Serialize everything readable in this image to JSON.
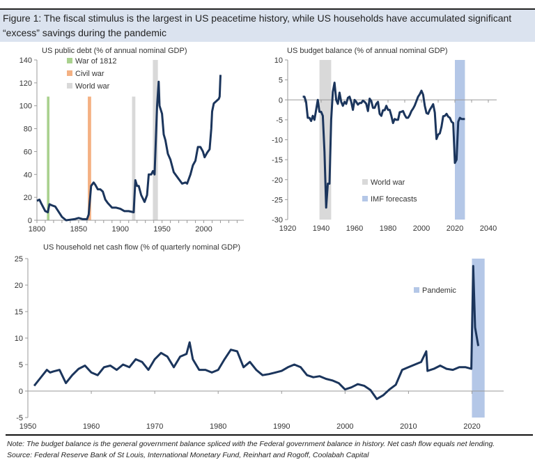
{
  "figure_title": "Figure 1: The fiscal stimulus is the largest in US peacetime history, while US households have accumulated significant “excess” savings during the pandemic",
  "note": "Note: The budget balance is the general government balance spliced with the Federal government balance in history. Net cash flow equals net lending.",
  "source": "Source: Federal Reserve Bank of St Louis, International Monetary Fund, Reinhart and Rogoff, Coolabah Capital",
  "colors": {
    "line": "#1b355c",
    "war_1812": "#a9d18e",
    "civil_war": "#f4b183",
    "world_war": "#d9d9d9",
    "imf": "#b4c7e7",
    "pandemic": "#b4c7e7",
    "header_bg": "#dbe3ef"
  },
  "chart_data": [
    {
      "type": "line",
      "title": "US public debt (% of annual nominal GDP)",
      "xlim": [
        1800,
        2048
      ],
      "ylim": [
        0,
        140
      ],
      "xticks": [
        1800,
        1850,
        1900,
        1950,
        2000
      ],
      "yticks": [
        0,
        20,
        40,
        60,
        80,
        100,
        120,
        140
      ],
      "legend": [
        "War of 1812",
        "Civil war",
        "World war"
      ],
      "legend_position": "top-left",
      "bands": [
        {
          "name": "War of 1812",
          "from": 1812,
          "to": 1815,
          "top": 108,
          "color": "#a9d18e"
        },
        {
          "name": "Civil war",
          "from": 1861,
          "to": 1865,
          "top": 108,
          "color": "#f4b183"
        },
        {
          "name": "World war",
          "from": 1914,
          "to": 1918,
          "top": 108,
          "color": "#d9d9d9"
        },
        {
          "name": "World war",
          "from": 1939,
          "to": 1945,
          "top": 140,
          "color": "#d9d9d9"
        }
      ],
      "x": [
        1800,
        1803,
        1805,
        1810,
        1813,
        1815,
        1818,
        1822,
        1830,
        1835,
        1840,
        1845,
        1850,
        1855,
        1860,
        1862,
        1865,
        1868,
        1870,
        1873,
        1876,
        1879,
        1882,
        1885,
        1890,
        1895,
        1900,
        1905,
        1910,
        1916,
        1918,
        1920,
        1922,
        1925,
        1929,
        1932,
        1934,
        1937,
        1939,
        1941,
        1944,
        1946,
        1947,
        1950,
        1952,
        1954,
        1957,
        1960,
        1964,
        1970,
        1974,
        1978,
        1980,
        1984,
        1987,
        1990,
        1993,
        1996,
        1999,
        2001,
        2004,
        2007,
        2009,
        2010,
        2012,
        2015,
        2018,
        2019,
        2020
      ],
      "values": [
        17,
        18,
        15,
        8,
        7,
        14,
        13,
        12,
        3,
        0,
        0.5,
        1,
        2,
        1,
        1,
        5,
        30,
        33,
        31,
        27,
        27,
        25,
        18,
        15,
        11,
        11,
        10,
        8,
        8,
        7,
        35,
        30,
        30,
        22,
        16,
        22,
        40,
        40,
        43,
        40,
        100,
        121,
        100,
        93,
        75,
        70,
        58,
        53,
        42,
        36,
        32,
        33,
        32,
        40,
        48,
        52,
        64,
        64,
        60,
        55,
        59,
        62,
        80,
        95,
        102,
        104,
        106,
        108,
        127
      ]
    },
    {
      "type": "line",
      "title": "US budget balance (% of annual nominal GDP)",
      "xlim": [
        1920,
        2045
      ],
      "ylim": [
        -30,
        10
      ],
      "xticks": [
        1920,
        1940,
        1960,
        1980,
        2000,
        2020,
        2040
      ],
      "yticks": [
        -30,
        -25,
        -20,
        -15,
        -10,
        -5,
        0,
        5,
        10
      ],
      "legend": [
        "World war",
        "IMF forecasts"
      ],
      "legend_position": "bottom-center",
      "bands": [
        {
          "name": "World war",
          "from": 1939,
          "to": 1946,
          "color": "#d9d9d9"
        },
        {
          "name": "IMF forecasts",
          "from": 2020,
          "to": 2026,
          "color": "#b4c7e7"
        }
      ],
      "x": [
        1929,
        1930,
        1931,
        1932,
        1933,
        1934,
        1935,
        1936,
        1937,
        1938,
        1939,
        1940,
        1941,
        1942,
        1943,
        1944,
        1945,
        1946,
        1947,
        1948,
        1949,
        1950,
        1951,
        1952,
        1953,
        1954,
        1955,
        1956,
        1957,
        1958,
        1959,
        1960,
        1961,
        1962,
        1963,
        1964,
        1965,
        1966,
        1967,
        1968,
        1969,
        1970,
        1971,
        1972,
        1973,
        1974,
        1975,
        1976,
        1977,
        1978,
        1979,
        1980,
        1981,
        1982,
        1983,
        1984,
        1985,
        1986,
        1987,
        1988,
        1989,
        1990,
        1991,
        1992,
        1993,
        1994,
        1995,
        1996,
        1997,
        1998,
        1999,
        2000,
        2001,
        2002,
        2003,
        2004,
        2005,
        2006,
        2007,
        2008,
        2009,
        2010,
        2011,
        2012,
        2013,
        2014,
        2015,
        2016,
        2017,
        2018,
        2019,
        2020,
        2021,
        2022,
        2023,
        2024,
        2025,
        2026
      ],
      "values": [
        0.8,
        0.8,
        -0.5,
        -4.5,
        -4.5,
        -5.3,
        -4,
        -5,
        -2.5,
        0,
        -3,
        -3,
        -4,
        -13,
        -27,
        -21,
        -21,
        -5,
        2,
        4.3,
        0,
        -1,
        1.8,
        -0.5,
        -1.5,
        -0.5,
        -1,
        0.5,
        0.8,
        -0.5,
        -2.5,
        0,
        -0.5,
        -1.2,
        -0.8,
        -0.8,
        -0.2,
        -0.5,
        -1,
        -2.8,
        0.3,
        -0.3,
        -2,
        -2,
        -1,
        -0.5,
        -3.5,
        -4,
        -2.6,
        -2.6,
        -1.5,
        -2.5,
        -2.5,
        -4,
        -5.8,
        -4.8,
        -5,
        -5,
        -3.1,
        -3,
        -2.8,
        -3.8,
        -4.5,
        -4.5,
        -3.8,
        -2.8,
        -2.2,
        -1.4,
        -0.3,
        0.8,
        1.4,
        2.3,
        1.3,
        -1.5,
        -3.3,
        -3.5,
        -2.5,
        -1.8,
        -1.1,
        -3.2,
        -9.8,
        -8.7,
        -8.4,
        -6.7,
        -4.1,
        -4,
        -3.5,
        -4.2,
        -4.5,
        -5.5,
        -5.8,
        -15.8,
        -15,
        -5.5,
        -4.5,
        -4.8,
        -4.8,
        -4.8
      ]
    },
    {
      "type": "line",
      "title": "US household net cash flow (% of quarterly nominal GDP)",
      "xlim": [
        1950,
        2025
      ],
      "ylim": [
        -5,
        25
      ],
      "xticks": [
        1950,
        1960,
        1970,
        1980,
        1990,
        2000,
        2010,
        2020
      ],
      "yticks": [
        -5,
        0,
        5,
        10,
        15,
        20,
        25
      ],
      "legend": [
        "Pandemic"
      ],
      "legend_position": "top-right",
      "bands": [
        {
          "name": "Pandemic",
          "from": 2020,
          "to": 2022,
          "color": "#b4c7e7"
        }
      ],
      "x": [
        1951,
        1952,
        1953,
        1953.5,
        1954,
        1955,
        1956,
        1957,
        1958,
        1959,
        1960,
        1961,
        1962,
        1963,
        1964,
        1965,
        1966,
        1967,
        1968,
        1969,
        1970,
        1971,
        1972,
        1973,
        1974,
        1975,
        1975.5,
        1976,
        1977,
        1978,
        1979,
        1980,
        1981,
        1982,
        1983,
        1984,
        1985,
        1986,
        1987,
        1988,
        1989,
        1990,
        1991,
        1992,
        1993,
        1994,
        1995,
        1996,
        1997,
        1998,
        1999,
        2000,
        2001,
        2002,
        2003,
        2004,
        2005,
        2006,
        2007,
        2008,
        2009,
        2010,
        2011,
        2012,
        2012.8,
        2013,
        2014,
        2015,
        2016,
        2017,
        2018,
        2019,
        2019.9,
        2020.2,
        2020.5,
        2021
      ],
      "values": [
        1,
        2.5,
        4,
        3.5,
        3.7,
        4,
        1.5,
        3,
        4.2,
        4.8,
        3.5,
        3,
        4.5,
        4.8,
        4,
        5,
        4.5,
        6,
        5.5,
        4,
        6,
        7.2,
        6.5,
        4.5,
        6.5,
        7,
        9.2,
        6,
        4,
        4,
        3.5,
        4,
        6,
        7.8,
        7.5,
        4.5,
        5.5,
        4,
        3,
        3.2,
        3.5,
        3.8,
        4.5,
        5,
        4.5,
        3,
        2.6,
        2.8,
        2.3,
        2,
        1.5,
        0.3,
        0.7,
        1.3,
        1,
        0.2,
        -1.5,
        -0.8,
        0.3,
        1.2,
        4,
        4.5,
        5,
        5.5,
        7.5,
        3.8,
        4.2,
        4.8,
        4.2,
        4,
        4.5,
        4.5,
        4.2,
        23.6,
        12,
        8.5
      ]
    }
  ]
}
